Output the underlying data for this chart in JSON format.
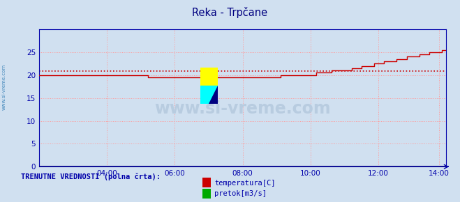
{
  "title": "Reka - Trpčane",
  "title_color": "#000080",
  "background_color": "#d0e0f0",
  "plot_bg_color": "#d0e0f0",
  "grid_color": "#ff9999",
  "axis_color": "#0000aa",
  "xlim": [
    0,
    288
  ],
  "ylim": [
    0,
    30
  ],
  "yticks": [
    0,
    5,
    10,
    15,
    20,
    25
  ],
  "xtick_labels": [
    "04:00",
    "06:00",
    "08:00",
    "10:00",
    "12:00",
    "14:00"
  ],
  "xtick_positions": [
    48,
    96,
    144,
    192,
    240,
    283
  ],
  "avg_line_y": 20.9,
  "avg_line_color": "#cc0000",
  "watermark_text": "www.si-vreme.com",
  "watermark_color": "#b8cce0",
  "sidebar_text": "www.si-vreme.com",
  "sidebar_color": "#4488bb",
  "legend_label_text": "TRENUTNE VREDNOSTI (polna črta):",
  "legend_label_color": "#0000aa",
  "legend_temp_color": "#cc0000",
  "legend_flow_color": "#00aa00",
  "temp_line_color": "#cc0000",
  "flow_line_color": "#000066",
  "temp_data_x": [
    0,
    24,
    48,
    72,
    96,
    120,
    144,
    152,
    160,
    168,
    180,
    192,
    200,
    210,
    216,
    224,
    232,
    240,
    248,
    256,
    264,
    272,
    280,
    288
  ],
  "temp_data_y": [
    20.1,
    20.0,
    19.9,
    19.8,
    19.5,
    19.4,
    19.4,
    19.5,
    19.6,
    19.7,
    19.9,
    20.1,
    20.5,
    20.9,
    21.0,
    21.5,
    22.0,
    22.5,
    23.0,
    23.5,
    24.0,
    24.5,
    25.0,
    25.5
  ],
  "flow_data_y": 0.0
}
